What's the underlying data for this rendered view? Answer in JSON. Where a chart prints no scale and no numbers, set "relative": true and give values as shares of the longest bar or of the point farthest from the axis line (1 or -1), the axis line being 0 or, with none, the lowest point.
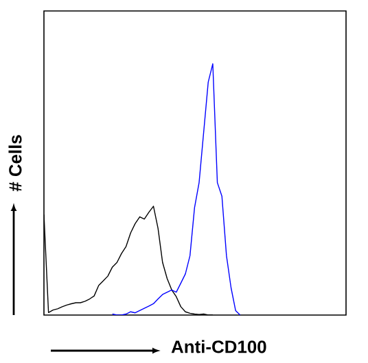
{
  "chart_data": {
    "type": "line",
    "relative": true,
    "xlabel": "Anti-CD100",
    "ylabel": "# Cells",
    "categories": [
      null,
      null,
      null,
      null,
      null,
      null,
      null,
      null,
      null,
      null,
      null,
      null,
      null,
      null,
      null,
      null,
      null,
      null,
      null,
      null,
      null,
      null,
      null,
      null,
      null,
      null,
      null,
      null,
      null,
      null,
      null,
      null,
      null,
      null,
      null,
      null,
      null,
      null,
      null,
      null,
      null,
      null,
      null,
      null,
      null,
      null,
      null,
      null,
      null,
      null,
      null,
      null,
      null,
      null,
      null,
      null,
      null,
      null,
      null,
      null,
      null,
      null,
      null,
      null,
      null,
      null,
      null
    ],
    "series": [
      {
        "color": "#000000",
        "values": [
          0.4,
          0.01,
          0.02,
          0.025,
          0.033,
          0.04,
          0.045,
          0.049,
          0.049,
          0.055,
          0.064,
          0.076,
          0.118,
          0.136,
          0.155,
          0.191,
          0.209,
          0.245,
          0.273,
          0.327,
          0.364,
          0.391,
          0.382,
          0.409,
          0.433,
          0.345,
          0.209,
          0.145,
          0.1,
          0.073,
          0.033,
          0.013,
          0.007,
          0.004,
          0.002,
          0.004,
          0,
          0,
          null,
          null,
          null,
          null,
          null,
          null,
          null,
          null,
          null,
          null,
          null,
          null,
          null,
          null,
          null,
          null,
          null,
          null,
          null,
          null,
          null,
          null,
          null,
          null,
          null,
          null,
          null,
          null,
          null
        ]
      },
      {
        "color": "#0000ff",
        "values": [
          null,
          null,
          null,
          null,
          null,
          null,
          null,
          null,
          null,
          null,
          null,
          null,
          null,
          null,
          null,
          0.004,
          0,
          0,
          0.004,
          0.013,
          0.009,
          0.018,
          0.027,
          0.036,
          0.045,
          0.064,
          0.082,
          0.091,
          0.1,
          0.091,
          0.127,
          0.164,
          0.236,
          0.427,
          0.527,
          0.727,
          0.927,
          1.0,
          0.527,
          0.473,
          0.236,
          0.109,
          0.018,
          0,
          null,
          null,
          null,
          null,
          null,
          null,
          null,
          null,
          null,
          null,
          null,
          null,
          null,
          null,
          null,
          null,
          null,
          null,
          null,
          null,
          null,
          null,
          null
        ]
      }
    ]
  }
}
